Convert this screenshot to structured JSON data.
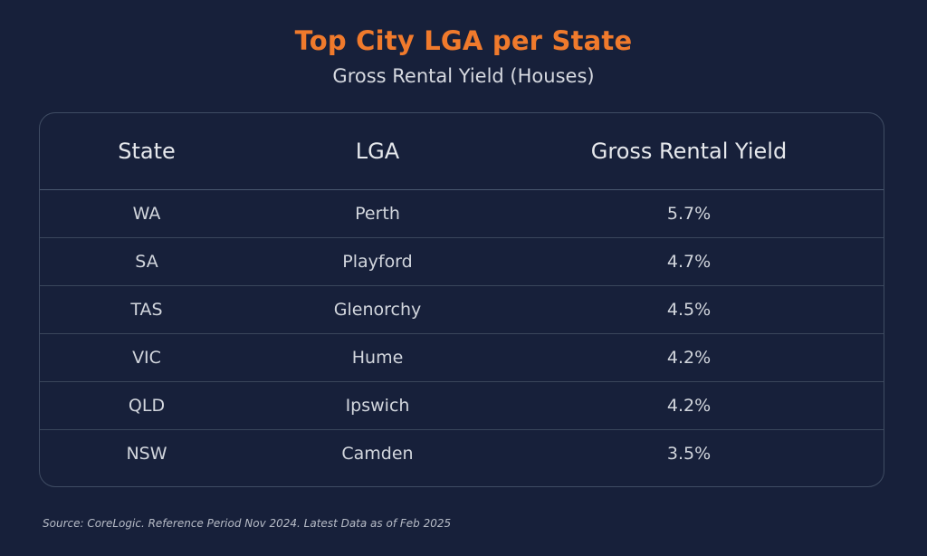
{
  "title": "Top City LGA per State",
  "subtitle": "Gross Rental Yield (Houses)",
  "table": {
    "headers": [
      "State",
      "LGA",
      "Gross Rental Yield"
    ],
    "rows": [
      {
        "state": "WA",
        "lga": "Perth",
        "yield": "5.7%"
      },
      {
        "state": "SA",
        "lga": "Playford",
        "yield": "4.7%"
      },
      {
        "state": "TAS",
        "lga": "Glenorchy",
        "yield": "4.5%"
      },
      {
        "state": "VIC",
        "lga": "Hume",
        "yield": "4.2%"
      },
      {
        "state": "QLD",
        "lga": "Ipswich",
        "yield": "4.2%"
      },
      {
        "state": "NSW",
        "lga": "Camden",
        "yield": "3.5%"
      }
    ]
  },
  "source": "Source: CoreLogic. Reference Period Nov 2024. Latest Data as of Feb 2025",
  "colors": {
    "background": "#17203a",
    "title": "#f07a2c",
    "text": "#d2d6dd",
    "border": "#3f4c63"
  },
  "chart_data": {
    "type": "table",
    "title": "Top City LGA per State",
    "subtitle": "Gross Rental Yield (Houses)",
    "columns": [
      "State",
      "LGA",
      "Gross Rental Yield"
    ],
    "rows": [
      [
        "WA",
        "Perth",
        "5.7%"
      ],
      [
        "SA",
        "Playford",
        "4.7%"
      ],
      [
        "TAS",
        "Glenorchy",
        "4.5%"
      ],
      [
        "VIC",
        "Hume",
        "4.2%"
      ],
      [
        "QLD",
        "Ipswich",
        "4.2%"
      ],
      [
        "NSW",
        "Camden",
        "3.5%"
      ]
    ]
  }
}
